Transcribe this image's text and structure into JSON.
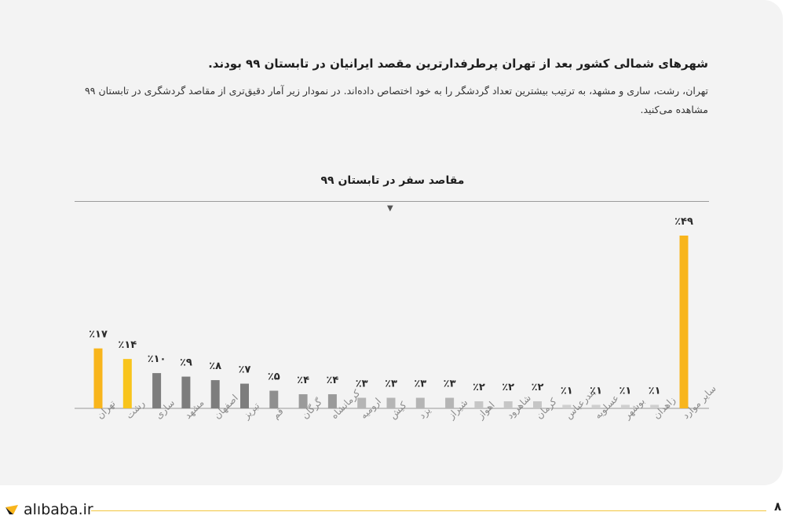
{
  "heading": "شهرهای شمالی کشور بعد از تهران پرطرفدارترین مقصد ایرانیان در تابستان ۹۹ بودند.",
  "paragraph": "تهران، رشت، ساری و مشهد، به ترتیب بیشترین تعداد گردشگر را به خود اختصاص داده‌اند. در نمودار زیر آمار دقیق‌تری از مقاصد گردشگری در تابستان ۹۹ مشاهده می‌کنید.",
  "chart_data": {
    "type": "bar",
    "title": "مقاصد سفر در تابستان ۹۹",
    "xlabel": "",
    "ylabel": "",
    "ylim": [
      0,
      49
    ],
    "grid": false,
    "categories": [
      "تهران",
      "رشت",
      "ساری",
      "مشهد",
      "اصفهان",
      "تبریز",
      "قم",
      "گرگان",
      "کرمانشاه",
      "ارومیه",
      "کیش",
      "یزد",
      "شیراز",
      "اهواز",
      "شاهرود",
      "کرمان",
      "بندرعباس",
      "عسلویه",
      "بوشهر",
      "زاهدان",
      "سایر موارد"
    ],
    "values": [
      17,
      14,
      10,
      9,
      8,
      7,
      5,
      4,
      4,
      3,
      3,
      3,
      3,
      2,
      2,
      2,
      1,
      1,
      1,
      1,
      49
    ],
    "value_labels": [
      "٪۱۷",
      "٪۱۴",
      "٪۱۰",
      "٪۹",
      "٪۸",
      "٪۷",
      "٪۵",
      "٪۴",
      "٪۴",
      "٪۳",
      "٪۳",
      "٪۳",
      "٪۳",
      "٪۲",
      "٪۲",
      "٪۲",
      "٪۱",
      "٪۱",
      "٪۱",
      "٪۱",
      "٪۴۹"
    ],
    "colors": [
      "#f8b51c",
      "#f8c41c",
      "#7d7d7d",
      "#7d7d7d",
      "#7d7d7d",
      "#7d7d7d",
      "#8f8f8f",
      "#9a9a9a",
      "#9a9a9a",
      "#b5b5b5",
      "#b5b5b5",
      "#b5b5b5",
      "#b5b5b5",
      "#c6c6c6",
      "#c6c6c6",
      "#c6c6c6",
      "#cfcfcf",
      "#cfcfcf",
      "#cfcfcf",
      "#cfcfcf",
      "#f8b51c"
    ]
  },
  "footer": {
    "brand": "alıbaba.ir",
    "page_number": "۸"
  }
}
